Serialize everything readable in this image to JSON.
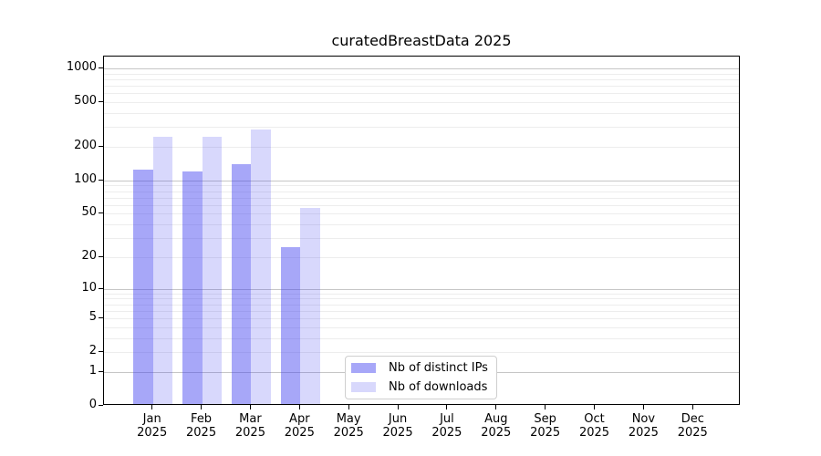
{
  "title": "curatedBreastData 2025",
  "chart_data": {
    "type": "bar",
    "title": "curatedBreastData 2025",
    "x_categories": [
      {
        "month": "Jan",
        "year": "2025"
      },
      {
        "month": "Feb",
        "year": "2025"
      },
      {
        "month": "Mar",
        "year": "2025"
      },
      {
        "month": "Apr",
        "year": "2025"
      },
      {
        "month": "May",
        "year": "2025"
      },
      {
        "month": "Jun",
        "year": "2025"
      },
      {
        "month": "Jul",
        "year": "2025"
      },
      {
        "month": "Aug",
        "year": "2025"
      },
      {
        "month": "Sep",
        "year": "2025"
      },
      {
        "month": "Oct",
        "year": "2025"
      },
      {
        "month": "Nov",
        "year": "2025"
      },
      {
        "month": "Dec",
        "year": "2025"
      }
    ],
    "series": [
      {
        "name": "Nb of distinct IPs",
        "fill": "rgba(60,60,240,0.45)",
        "legend_hex": "#a7a7f4",
        "values": [
          121,
          117,
          136,
          24,
          null,
          null,
          null,
          null,
          null,
          null,
          null,
          null
        ]
      },
      {
        "name": "Nb of downloads",
        "fill": "rgba(60,60,240,0.2)",
        "legend_hex": "#d8d8f9",
        "values": [
          237,
          238,
          273,
          54,
          null,
          null,
          null,
          null,
          null,
          null,
          null,
          null
        ]
      }
    ],
    "y_axis": {
      "scale": "log10(value+1)",
      "tick_values": [
        1000,
        500,
        200,
        100,
        50,
        20,
        10,
        5,
        2,
        1,
        0
      ],
      "ylim": [
        0,
        1250
      ]
    },
    "grid": {
      "major_values": [
        1,
        10,
        100,
        1000
      ],
      "minor_values": [
        2,
        3,
        4,
        5,
        6,
        7,
        8,
        9,
        20,
        30,
        40,
        50,
        60,
        70,
        80,
        90,
        200,
        300,
        400,
        500,
        600,
        700,
        800,
        900
      ]
    },
    "legend_position": "lower-center",
    "xlabel": "",
    "ylabel": ""
  }
}
